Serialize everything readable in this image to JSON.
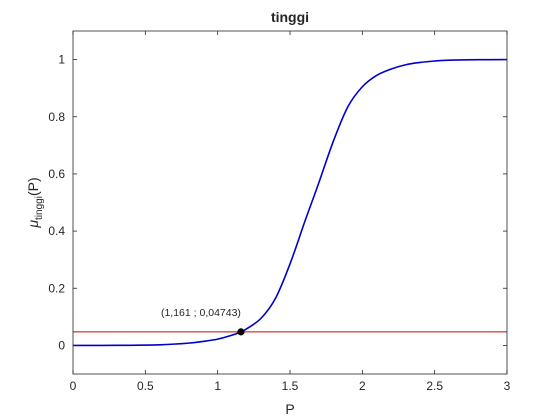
{
  "chart_data": {
    "type": "line",
    "title": "tinggi",
    "xlabel": "P",
    "ylabel": {
      "mu": "μ",
      "sub": "tinggi",
      "arg": "(P)"
    },
    "xlim": [
      0,
      3
    ],
    "ylim": [
      -0.1,
      1.1
    ],
    "xticks": [
      0,
      0.5,
      1,
      1.5,
      2,
      2.5,
      3
    ],
    "xtick_labels": [
      "0",
      "0.5",
      "1",
      "1.5",
      "2",
      "2.5",
      "3"
    ],
    "yticks": [
      0,
      0.2,
      0.4,
      0.6,
      0.8,
      1
    ],
    "ytick_labels": [
      "0",
      "0.2",
      "0.4",
      "0.6",
      "0.8",
      "1"
    ],
    "grid": false,
    "series": [
      {
        "kind": "curve",
        "color": "#0000cc",
        "x": [
          0,
          0.2,
          0.4,
          0.6,
          0.8,
          0.9,
          1.0,
          1.1,
          1.161,
          1.2,
          1.3,
          1.4,
          1.5,
          1.6,
          1.65,
          1.7,
          1.8,
          1.9,
          2.0,
          2.1,
          2.2,
          2.3,
          2.4,
          2.5,
          2.6,
          2.8,
          3.0
        ],
        "y": [
          0,
          0.0001,
          0.0005,
          0.002,
          0.008,
          0.014,
          0.022,
          0.036,
          0.04743,
          0.058,
          0.095,
          0.165,
          0.285,
          0.43,
          0.5,
          0.57,
          0.715,
          0.835,
          0.905,
          0.945,
          0.967,
          0.982,
          0.99,
          0.995,
          0.998,
          0.9995,
          1.0
        ]
      },
      {
        "kind": "hline",
        "color": "#cc0000",
        "y": 0.04743
      }
    ],
    "marker": {
      "x": 1.161,
      "y": 0.04743,
      "color": "#000000"
    },
    "annotation": {
      "text": "(1,161 ; 0,04743)",
      "x": 1.161,
      "y": 0.04743
    }
  }
}
